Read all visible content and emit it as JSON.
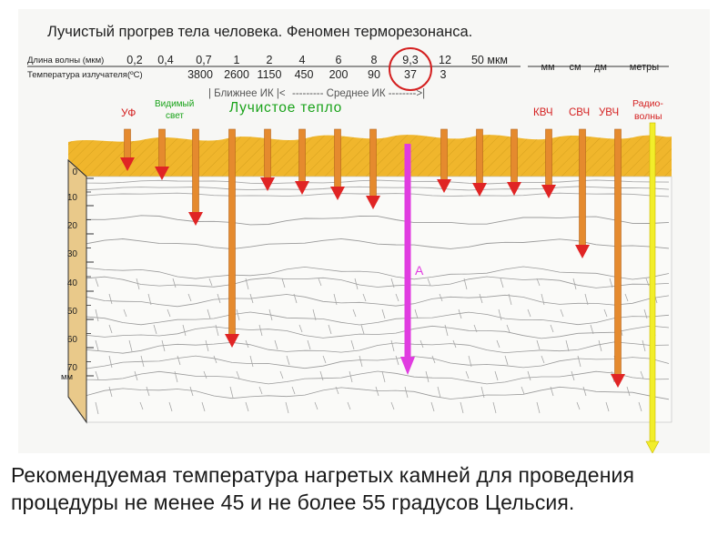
{
  "title": "Лучистый прогрев тела человека. Феномен терморезонанса.",
  "header": {
    "wavelength_label": "Длина волны (мкм)",
    "temperature_label": "Температура излучателя(ºС)",
    "wavelengths": [
      "0,2",
      "0,4",
      "0,7",
      "1",
      "2",
      "4",
      "6",
      "8",
      "9,3",
      "12",
      "50 мкм"
    ],
    "temperatures": [
      "3800",
      "2600",
      "1150",
      "450",
      "200",
      "90",
      "37",
      "3"
    ],
    "highlighted_wavelength": "9,3",
    "highlighted_temperature": "37",
    "far_units": [
      "мм",
      "см",
      "дм",
      "метры"
    ]
  },
  "ranges": {
    "near_ir": "| Ближнее ИК |<",
    "middle_ir": "--------- Среднее ИК -------->|",
    "radiant_heat": "Лучистое тепло"
  },
  "bands": {
    "uv": "УФ",
    "visible_1": "Видимый",
    "visible_2": "свет",
    "ehf": "КВЧ",
    "shf": "СВЧ",
    "uhf": "УВЧ",
    "radio_1": "Радио-",
    "radio_2": "волны"
  },
  "depth_scale": {
    "ticks": [
      "0",
      "10",
      "20",
      "30",
      "40",
      "50",
      "60",
      "70"
    ],
    "unit": "мм"
  },
  "arrow_label": "А",
  "colors": {
    "skin_surface": "#f0b62c",
    "ir_arrow": "#e58a2e",
    "arrow_head": "#e02424",
    "resonance_arrow": "#e03ce0",
    "radio_arrow": "#f2ee2a",
    "scale_wood": "#e9c98a",
    "title_green": "#1aa31a",
    "title_red": "#d42020"
  },
  "caption": "Рекомендуемая температура нагретых камней для проведения процедуры не менее 45 и не более 55 градусов Цельсия."
}
